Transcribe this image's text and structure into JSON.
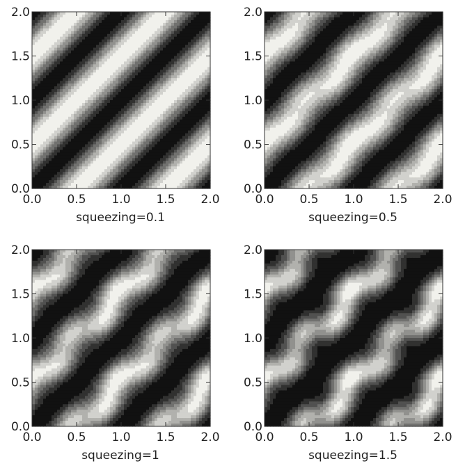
{
  "figure": {
    "colors": {
      "contour_dark": "#111111",
      "contour_light": "#f1f1ec",
      "contour_lines": "#3a3a3a",
      "frame": "#333333",
      "text": "#222222"
    }
  },
  "chart_data": [
    {
      "type": "heatmap",
      "subtype": "filled-contour",
      "caption": "squeezing=0.1",
      "squeezing": 0.1,
      "xlim": [
        0,
        2
      ],
      "ylim": [
        0,
        2
      ],
      "xticks": [
        "0.0",
        "0.5",
        "1.0",
        "1.5",
        "2.0"
      ],
      "yticks": [
        "0.0",
        "0.5",
        "1.0",
        "1.5",
        "2.0"
      ],
      "levels": 8,
      "pattern": "diagonal dark bands along x - y = constant (period ~1 in x - y); nearly uniform light ridges between them",
      "colormap": "grayscale (dark = low, light = high)",
      "grid": false
    },
    {
      "type": "heatmap",
      "subtype": "filled-contour",
      "caption": "squeezing=0.5",
      "squeezing": 0.5,
      "xlim": [
        0,
        2
      ],
      "ylim": [
        0,
        2
      ],
      "xticks": [
        "0.0",
        "0.5",
        "1.0",
        "1.5",
        "2.0"
      ],
      "yticks": [
        "0.0",
        "0.5",
        "1.0",
        "1.5",
        "2.0"
      ],
      "levels": 8,
      "pattern": "narrower diagonal dark bands; small light elliptical islands appear on the light ridges at x = 0, 1, 2",
      "colormap": "grayscale (dark = low, light = high)",
      "grid": false
    },
    {
      "type": "heatmap",
      "subtype": "filled-contour",
      "caption": "squeezing=1",
      "squeezing": 1,
      "xlim": [
        0,
        2
      ],
      "ylim": [
        0,
        2
      ],
      "xticks": [
        "0.0",
        "0.5",
        "1.0",
        "1.5",
        "2.0"
      ],
      "yticks": [
        "0.0",
        "0.5",
        "1.0",
        "1.5",
        "2.0"
      ],
      "levels": 8,
      "pattern": "wavy diagonal dark bands; light ridges break into lobes with elliptical islands at x = 0, 1, 2",
      "colormap": "grayscale (dark = low, light = high)",
      "grid": false
    },
    {
      "type": "heatmap",
      "subtype": "filled-contour",
      "caption": "squeezing=1.5",
      "squeezing": 1.5,
      "xlim": [
        0,
        2
      ],
      "ylim": [
        0,
        2
      ],
      "xticks": [
        "0.0",
        "0.5",
        "1.0",
        "1.5",
        "2.0"
      ],
      "yticks": [
        "0.0",
        "0.5",
        "1.0",
        "1.5",
        "2.0"
      ],
      "levels": 8,
      "pattern": "strongly modulated diagonal dark bands on a mid-gray background; vertically elongated light islands at x = 0, 1, 2",
      "colormap": "grayscale (dark = low, light = high)",
      "grid": false
    }
  ]
}
